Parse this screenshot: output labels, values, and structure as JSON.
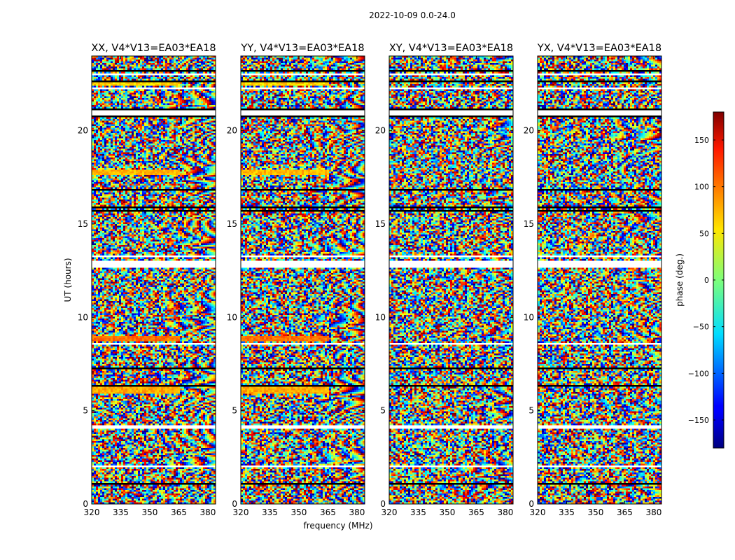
{
  "chart_data": {
    "type": "heatmap",
    "suptitle": "2022-10-09 0.0-24.0",
    "xlabel": "frequency (MHz)",
    "ylabel": "UT (hours)",
    "xlim": [
      320,
      384
    ],
    "ylim": [
      0,
      24
    ],
    "xticks": [
      320,
      335,
      350,
      365,
      380
    ],
    "yticks": [
      0,
      5,
      10,
      15,
      20
    ],
    "colormap": "jet",
    "colorbar": {
      "label": "phase (deg.)",
      "range": [
        -180,
        180
      ],
      "ticks": [
        150,
        100,
        50,
        0,
        -50,
        -100,
        -150
      ],
      "tick_labels": [
        "150",
        "100",
        "50",
        "0",
        "−50",
        "−100",
        "−150"
      ]
    },
    "panels": [
      {
        "title": "XX, V4*V13=EA03*EA18",
        "product": "XX"
      },
      {
        "title": "YY, V4*V13=EA03*EA18",
        "product": "YY"
      },
      {
        "title": "XY, V4*V13=EA03*EA18",
        "product": "XY"
      },
      {
        "title": "YX, V4*V13=EA03*EA18",
        "product": "YX"
      }
    ],
    "flagged_ut_ranges": [
      [
        1.95,
        2.1
      ],
      [
        4.05,
        4.25
      ],
      [
        8.55,
        8.65
      ],
      [
        12.7,
        13.05
      ],
      [
        13.2,
        13.35
      ],
      [
        20.8,
        21.1
      ],
      [
        22.2,
        22.35
      ],
      [
        22.95,
        23.1
      ]
    ],
    "dark_ut_bands": [
      [
        1.0,
        1.15
      ],
      [
        6.3,
        6.5
      ],
      [
        7.1,
        7.3
      ],
      [
        12.6,
        12.75
      ],
      [
        15.6,
        16.0
      ],
      [
        16.7,
        16.85
      ],
      [
        20.65,
        21.2
      ],
      [
        22.6,
        22.75
      ],
      [
        23.2,
        23.35
      ]
    ],
    "coherent_ut_bands": [
      {
        "panel": "XX",
        "start": 5.9,
        "end": 6.4,
        "phase_deg": 75
      },
      {
        "panel": "YY",
        "start": 5.9,
        "end": 6.4,
        "phase_deg": 75
      },
      {
        "panel": "XX",
        "start": 8.7,
        "end": 9.0,
        "phase_deg": 95
      },
      {
        "panel": "YY",
        "start": 8.7,
        "end": 9.0,
        "phase_deg": 95
      },
      {
        "panel": "XX",
        "start": 17.6,
        "end": 17.9,
        "phase_deg": 70
      },
      {
        "panel": "YY",
        "start": 17.6,
        "end": 17.9,
        "phase_deg": 70
      },
      {
        "panel": "XX",
        "start": 22.4,
        "end": 22.6,
        "phase_deg": 60
      },
      {
        "panel": "YY",
        "start": 22.4,
        "end": 22.6,
        "phase_deg": 60
      }
    ]
  }
}
